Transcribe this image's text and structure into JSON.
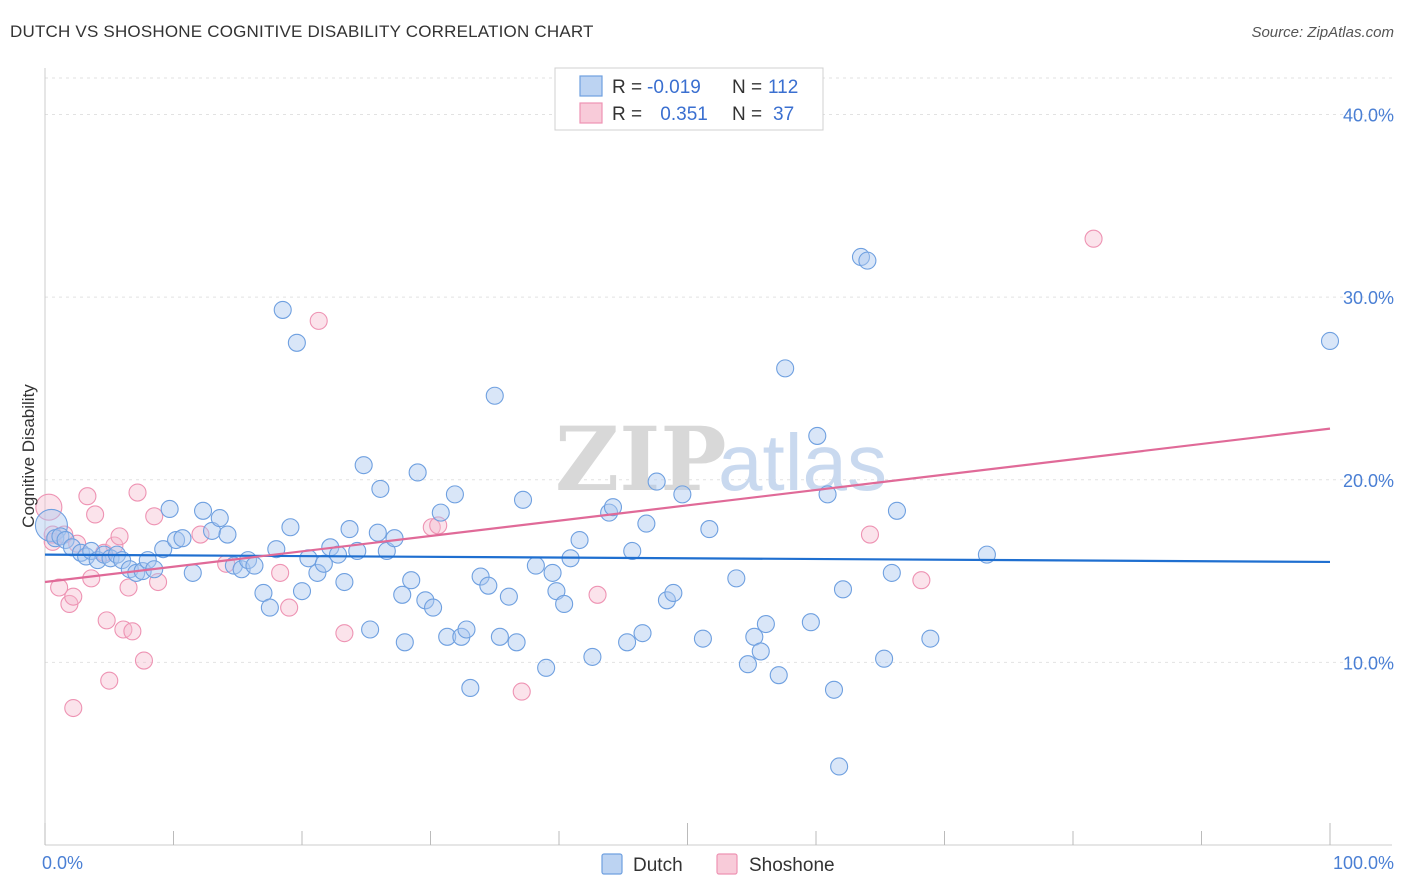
{
  "title": "DUTCH VS SHOSHONE COGNITIVE DISABILITY CORRELATION CHART",
  "source": "Source: ZipAtlas.com",
  "watermark": {
    "zip": "ZIP",
    "atlas": "atlas"
  },
  "colors": {
    "dutch": "#6fa0e0",
    "shoshone": "#ee93b3",
    "dutch_line": "#1f6fd0",
    "shoshone_line": "#e06a98",
    "axis_text": "#4a7fd4"
  },
  "legend": {
    "row1": {
      "r_label": "R = ",
      "r_value": "-0.019",
      "n_label": "N = ",
      "n_value": "112"
    },
    "row2": {
      "r_label": "R = ",
      "r_value": " 0.351",
      "n_label": "N = ",
      "n_value": "37"
    }
  },
  "bottom_legend": {
    "dutch": "Dutch",
    "shoshone": "Shoshone"
  },
  "chart_data": {
    "type": "scatter",
    "title": "DUTCH VS SHOSHONE COGNITIVE DISABILITY CORRELATION CHART",
    "xlabel": "",
    "ylabel": "Cognitive Disability",
    "xlim": [
      0,
      100
    ],
    "ylim": [
      0,
      42
    ],
    "x_tick_labels": {
      "left": "0.0%",
      "right": "100.0%"
    },
    "y_ticks": [
      10,
      20,
      30,
      40
    ],
    "y_tick_labels": [
      "10.0%",
      "20.0%",
      "30.0%",
      "40.0%"
    ],
    "series": [
      {
        "name": "Dutch",
        "trend": {
          "x": [
            0,
            100
          ],
          "y": [
            15.9,
            15.5
          ]
        },
        "points": [
          [
            0.5,
            17.5
          ],
          [
            0.8,
            16.8
          ],
          [
            1.2,
            16.9
          ],
          [
            1.6,
            16.7
          ],
          [
            2.1,
            16.3
          ],
          [
            2.8,
            16.0
          ],
          [
            3.2,
            15.8
          ],
          [
            3.6,
            16.1
          ],
          [
            4.1,
            15.6
          ],
          [
            4.6,
            15.9
          ],
          [
            5.1,
            15.7
          ],
          [
            5.6,
            15.9
          ],
          [
            6.0,
            15.6
          ],
          [
            6.6,
            15.1
          ],
          [
            7.1,
            14.9
          ],
          [
            7.6,
            15.0
          ],
          [
            8.0,
            15.6
          ],
          [
            8.5,
            15.1
          ],
          [
            9.2,
            16.2
          ],
          [
            9.7,
            18.4
          ],
          [
            10.2,
            16.7
          ],
          [
            10.7,
            16.8
          ],
          [
            11.5,
            14.9
          ],
          [
            12.3,
            18.3
          ],
          [
            13.0,
            17.2
          ],
          [
            13.6,
            17.9
          ],
          [
            14.2,
            17.0
          ],
          [
            14.7,
            15.3
          ],
          [
            15.3,
            15.1
          ],
          [
            15.8,
            15.6
          ],
          [
            16.3,
            15.3
          ],
          [
            17.0,
            13.8
          ],
          [
            17.5,
            13.0
          ],
          [
            18.0,
            16.2
          ],
          [
            18.5,
            29.3
          ],
          [
            19.1,
            17.4
          ],
          [
            19.6,
            27.5
          ],
          [
            20.0,
            13.9
          ],
          [
            20.5,
            15.7
          ],
          [
            21.2,
            14.9
          ],
          [
            21.7,
            15.4
          ],
          [
            22.2,
            16.3
          ],
          [
            22.8,
            15.9
          ],
          [
            23.3,
            14.4
          ],
          [
            23.7,
            17.3
          ],
          [
            24.3,
            16.1
          ],
          [
            24.8,
            20.8
          ],
          [
            25.3,
            11.8
          ],
          [
            25.9,
            17.1
          ],
          [
            26.1,
            19.5
          ],
          [
            26.6,
            16.1
          ],
          [
            27.2,
            16.8
          ],
          [
            27.8,
            13.7
          ],
          [
            28.0,
            11.1
          ],
          [
            28.5,
            14.5
          ],
          [
            29.0,
            20.4
          ],
          [
            29.6,
            13.4
          ],
          [
            30.2,
            13.0
          ],
          [
            30.8,
            18.2
          ],
          [
            31.3,
            11.4
          ],
          [
            31.9,
            19.2
          ],
          [
            32.4,
            11.4
          ],
          [
            32.8,
            11.8
          ],
          [
            33.1,
            8.6
          ],
          [
            33.9,
            14.7
          ],
          [
            34.5,
            14.2
          ],
          [
            35.0,
            24.6
          ],
          [
            35.4,
            11.4
          ],
          [
            36.1,
            13.6
          ],
          [
            36.7,
            11.1
          ],
          [
            37.2,
            18.9
          ],
          [
            38.2,
            15.3
          ],
          [
            39.0,
            9.7
          ],
          [
            39.5,
            14.9
          ],
          [
            39.8,
            13.9
          ],
          [
            40.4,
            13.2
          ],
          [
            40.9,
            15.7
          ],
          [
            41.6,
            16.7
          ],
          [
            42.6,
            10.3
          ],
          [
            43.9,
            18.2
          ],
          [
            44.2,
            18.5
          ],
          [
            45.3,
            11.1
          ],
          [
            45.7,
            16.1
          ],
          [
            46.5,
            11.6
          ],
          [
            46.8,
            17.6
          ],
          [
            47.6,
            19.9
          ],
          [
            48.4,
            13.4
          ],
          [
            48.9,
            13.8
          ],
          [
            49.6,
            19.2
          ],
          [
            51.2,
            11.3
          ],
          [
            51.7,
            17.3
          ],
          [
            53.8,
            14.6
          ],
          [
            54.7,
            9.9
          ],
          [
            55.2,
            11.4
          ],
          [
            55.7,
            10.6
          ],
          [
            56.1,
            12.1
          ],
          [
            57.1,
            9.3
          ],
          [
            57.6,
            26.1
          ],
          [
            59.6,
            12.2
          ],
          [
            60.1,
            22.4
          ],
          [
            61.4,
            8.5
          ],
          [
            61.8,
            4.3
          ],
          [
            60.9,
            19.2
          ],
          [
            63.5,
            32.2
          ],
          [
            64.0,
            32.0
          ],
          [
            62.1,
            14.0
          ],
          [
            65.3,
            10.2
          ],
          [
            65.9,
            14.9
          ],
          [
            66.3,
            18.3
          ],
          [
            68.9,
            11.3
          ],
          [
            73.3,
            15.9
          ],
          [
            100,
            27.6
          ]
        ]
      },
      {
        "name": "Shoshone",
        "trend": {
          "x": [
            0,
            100
          ],
          "y": [
            14.4,
            22.8
          ]
        },
        "points": [
          [
            0.3,
            18.5
          ],
          [
            0.6,
            16.6
          ],
          [
            1.1,
            14.1
          ],
          [
            1.5,
            17.0
          ],
          [
            1.9,
            13.2
          ],
          [
            2.2,
            13.6
          ],
          [
            2.5,
            16.5
          ],
          [
            3.3,
            19.1
          ],
          [
            3.6,
            14.6
          ],
          [
            3.9,
            18.1
          ],
          [
            4.6,
            16.0
          ],
          [
            4.8,
            12.3
          ],
          [
            5.0,
            9.0
          ],
          [
            5.4,
            16.4
          ],
          [
            5.8,
            16.9
          ],
          [
            6.1,
            11.8
          ],
          [
            6.5,
            14.1
          ],
          [
            6.8,
            11.7
          ],
          [
            7.2,
            19.3
          ],
          [
            7.7,
            10.1
          ],
          [
            8.5,
            18.0
          ],
          [
            8.8,
            14.4
          ],
          [
            2.2,
            7.5
          ],
          [
            12.1,
            17.0
          ],
          [
            14.1,
            15.4
          ],
          [
            18.3,
            14.9
          ],
          [
            19.0,
            13.0
          ],
          [
            21.3,
            28.7
          ],
          [
            23.3,
            11.6
          ],
          [
            30.1,
            17.4
          ],
          [
            30.6,
            17.5
          ],
          [
            37.1,
            8.4
          ],
          [
            43.0,
            13.7
          ],
          [
            64.2,
            17.0
          ],
          [
            68.2,
            14.5
          ],
          [
            81.6,
            33.2
          ],
          [
            0.6,
            17.0
          ]
        ]
      }
    ]
  }
}
